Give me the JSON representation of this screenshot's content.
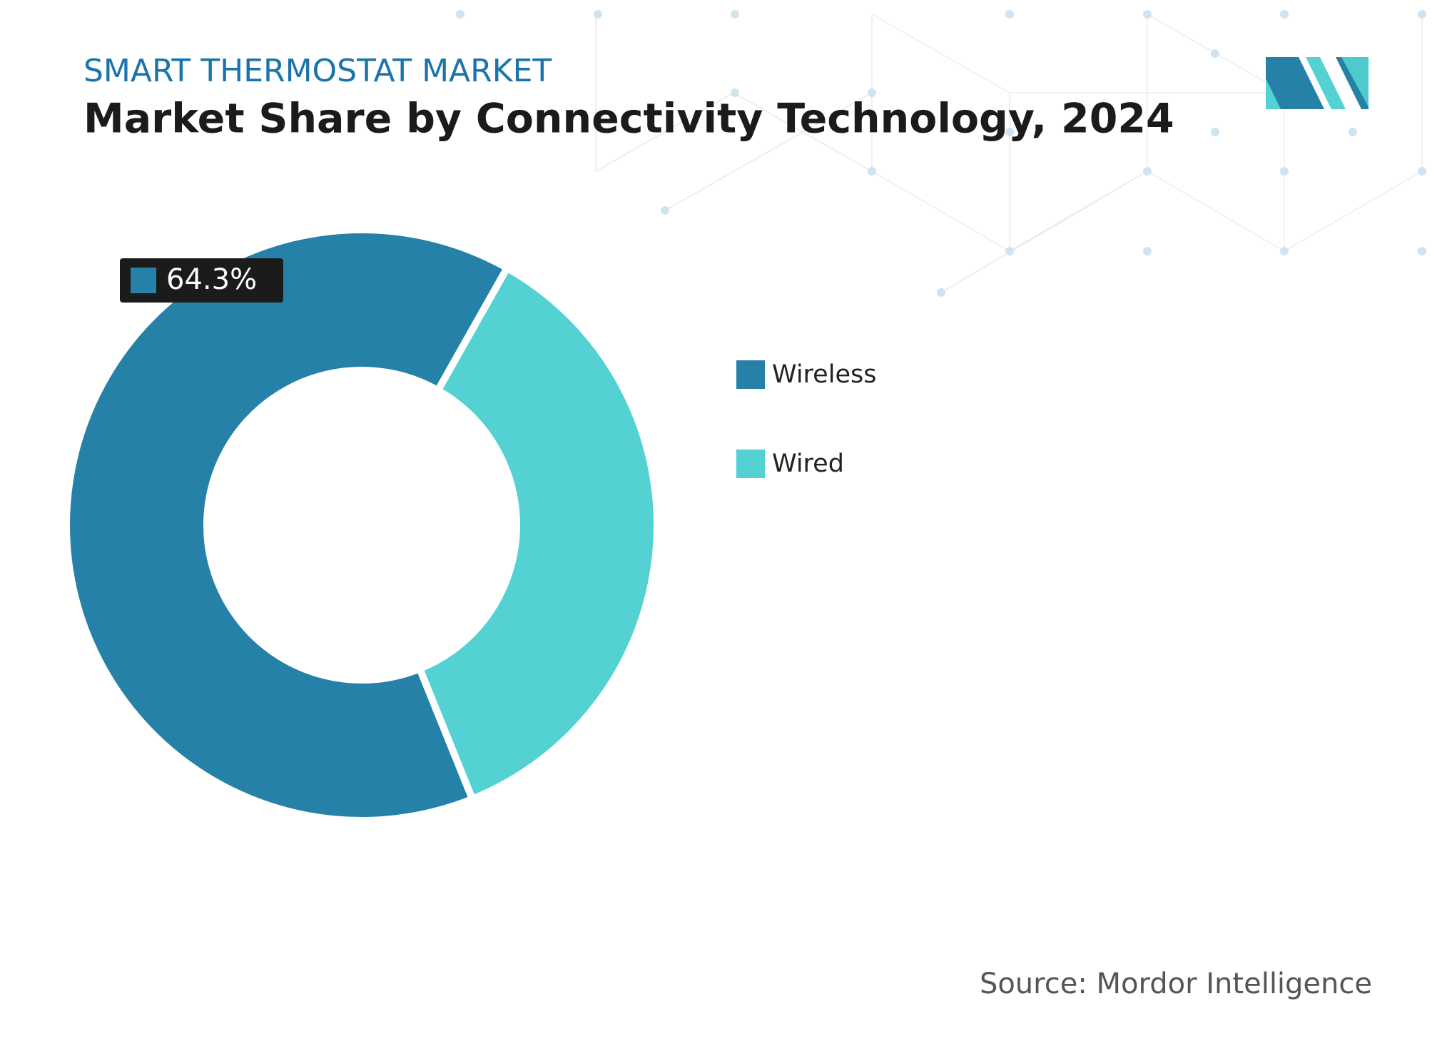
{
  "chart_data": {
    "type": "donut",
    "subtitle": "SMART THERMOSTAT MARKET",
    "title": "Market Share by Connectivity Technology, 2024",
    "categories": [
      "Wireless",
      "Wired"
    ],
    "values": [
      64.3,
      35.7
    ],
    "value_labels": [
      "64.3%",
      null
    ],
    "colors": [
      "#2681a8",
      "#53d1d3"
    ],
    "source": "Source: Mordor Intelligence",
    "legend": "right"
  }
}
